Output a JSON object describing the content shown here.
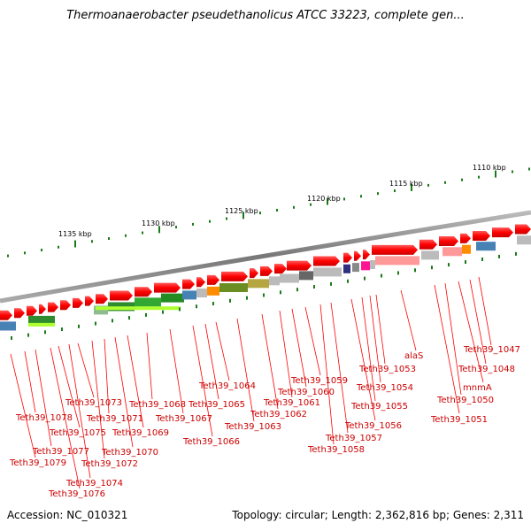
{
  "title": "Thermoanaerobacter pseudethanolicus ATCC 33223, complete gen...",
  "accession": "Accession: NC_010321",
  "topology": "Topology: circular; Length: 2,362,816 bp; Genes: 2,311",
  "kbp_labels": [
    "1110 kbp",
    "1115 kbp",
    "1120 kbp",
    "1125 kbp",
    "1130 kbp",
    "1135 kbp"
  ],
  "gene_labels": [
    "Teth39_1047",
    "Teth39_1048",
    "mnmA",
    "Teth39_1050",
    "Teth39_1051",
    "alaS",
    "Teth39_1053",
    "Teth39_1054",
    "Teth39_1055",
    "Teth39_1056",
    "Teth39_1057",
    "Teth39_1058",
    "Teth39_1059",
    "Teth39_1060",
    "Teth39_1061",
    "Teth39_1062",
    "Teth39_1063",
    "Teth39_1064",
    "Teth39_1065",
    "Teth39_1066",
    "Teth39_1067",
    "Teth39_1068",
    "Teth39_1069",
    "Teth39_1070",
    "Teth39_1071",
    "Teth39_1072",
    "Teth39_1073",
    "Teth39_1074",
    "Teth39_1075",
    "Teth39_1076",
    "Teth39_1077",
    "Teth39_1078",
    "Teth39_1079"
  ],
  "colors": {
    "gene_red": "#ff0000",
    "label_red": "#cc0000",
    "backbone": "#888888",
    "tick_green": "#1a7a1a"
  }
}
